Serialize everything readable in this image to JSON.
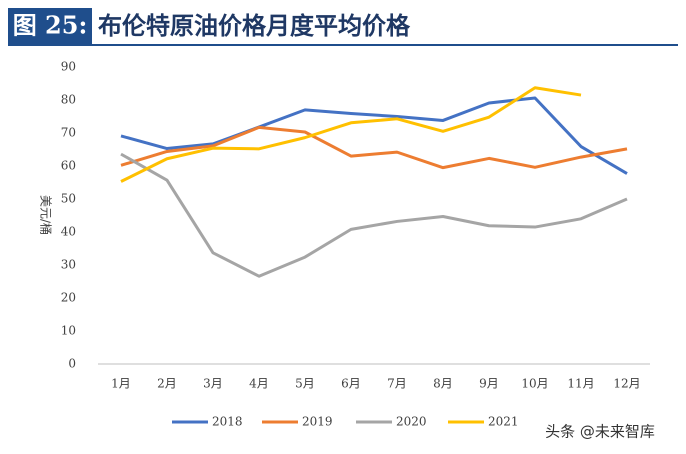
{
  "chart_data": {
    "type": "line",
    "figure_label": "图 25:",
    "title": "布伦特原油价格月度平均价格",
    "y_label": "美元/桶",
    "categories": [
      "1月",
      "2月",
      "3月",
      "4月",
      "5月",
      "6月",
      "7月",
      "8月",
      "9月",
      "10月",
      "11月",
      "12月"
    ],
    "series": [
      {
        "name": "2018",
        "color": "#4472c4",
        "values": [
          69.1,
          65.3,
          66.7,
          71.8,
          77.0,
          75.9,
          75.0,
          73.8,
          79.1,
          80.6,
          65.9,
          57.7
        ]
      },
      {
        "name": "2019",
        "color": "#ed7d31",
        "values": [
          60.2,
          64.4,
          66.1,
          71.7,
          70.3,
          63.0,
          64.2,
          59.5,
          62.3,
          59.6,
          62.7,
          65.2
        ]
      },
      {
        "name": "2020",
        "color": "#a5a5a5",
        "values": [
          63.6,
          55.7,
          33.7,
          26.6,
          32.4,
          40.8,
          43.2,
          44.7,
          41.9,
          41.5,
          44.0,
          50.0
        ]
      },
      {
        "name": "2021",
        "color": "#ffc000",
        "values": [
          55.3,
          62.2,
          65.4,
          65.2,
          68.6,
          73.1,
          74.3,
          70.5,
          74.8,
          83.7,
          81.5,
          null
        ]
      }
    ],
    "ylim": [
      0,
      90
    ],
    "yticks": [
      0,
      10,
      20,
      30,
      40,
      50,
      60,
      70,
      80,
      90
    ],
    "grid": false,
    "legend": "bottom",
    "watermark": "头条 @未来智库"
  }
}
